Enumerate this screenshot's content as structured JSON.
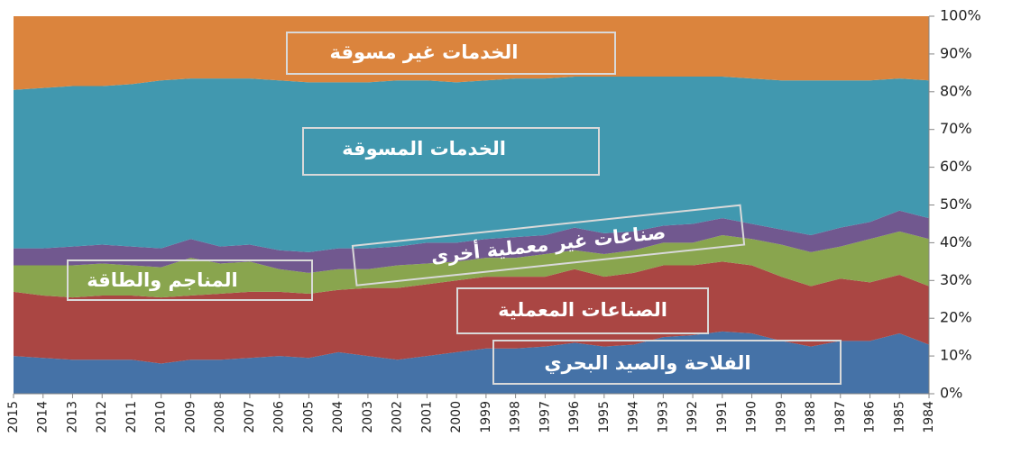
{
  "chart_data": {
    "type": "stacked_area",
    "categories": [
      "2015",
      "2014",
      "2013",
      "2012",
      "2011",
      "2010",
      "2009",
      "2008",
      "2007",
      "2006",
      "2005",
      "2004",
      "2003",
      "2002",
      "2001",
      "2000",
      "1999",
      "1998",
      "1997",
      "1996",
      "1995",
      "1994",
      "1993",
      "1992",
      "1991",
      "1990",
      "1989",
      "1988",
      "1987",
      "1986",
      "1985",
      "1984"
    ],
    "series": [
      {
        "name": "الفلاحة والصيد البحري",
        "color": "#4572a7",
        "values": [
          10,
          9.5,
          9,
          9,
          9,
          8,
          9,
          9,
          9.5,
          10,
          9.5,
          11,
          10,
          9,
          10,
          11,
          12,
          12,
          12.5,
          13.5,
          12.5,
          13,
          15,
          15.5,
          16.5,
          16,
          14,
          12.5,
          14,
          14,
          16,
          13
        ]
      },
      {
        "name": "الصناعات المعملية",
        "color": "#aa4643",
        "values": [
          17,
          16.5,
          16.5,
          17,
          17,
          17.5,
          17,
          17.5,
          17.5,
          17,
          17,
          16.5,
          18,
          19,
          19,
          19,
          19,
          19,
          18.5,
          19.5,
          18.5,
          19,
          19,
          18.5,
          18.5,
          18,
          17,
          16,
          16.5,
          15.5,
          15.5,
          15.5
        ]
      },
      {
        "name": "المناجم والطاقة",
        "color": "#89a54e",
        "values": [
          7,
          8,
          8.5,
          8.5,
          8,
          8,
          10,
          8,
          8,
          6,
          5.5,
          5.5,
          5,
          6,
          5.5,
          5,
          5,
          5,
          6,
          5,
          6,
          6,
          6,
          6,
          7,
          7,
          8.5,
          9,
          8.5,
          11.5,
          11.5,
          12.5
        ]
      },
      {
        "name": "صناعات غير معملية أخرى",
        "color": "#71588f",
        "values": [
          4.5,
          4.5,
          5,
          5,
          5,
          5,
          5,
          4.5,
          4.5,
          5,
          5.5,
          5.5,
          5.5,
          5,
          5.5,
          5,
          5,
          5.5,
          5,
          6,
          5.5,
          5,
          4.5,
          5,
          4.5,
          4,
          4,
          4.5,
          5,
          4.5,
          5.5,
          5.5
        ]
      },
      {
        "name": "الخدمات المسوقة",
        "color": "#4198af",
        "values": [
          42,
          42.5,
          42.5,
          42,
          43,
          44.5,
          42.5,
          44.5,
          44,
          45,
          45,
          44,
          44,
          44,
          43,
          42.5,
          42,
          42,
          41.5,
          40,
          41.5,
          41,
          39.5,
          39,
          37.5,
          38.5,
          39.5,
          41,
          39,
          37.5,
          35,
          36.5
        ]
      },
      {
        "name": "الخدمات غير مسوقة",
        "color": "#db843d",
        "values": [
          19.5,
          19,
          18.5,
          18.5,
          18,
          17,
          16.5,
          16.5,
          16.5,
          17,
          17.5,
          17.5,
          17.5,
          17,
          17,
          17.5,
          17,
          16.5,
          16.5,
          16,
          16,
          16,
          16,
          16,
          16,
          16.5,
          17,
          17,
          17,
          17,
          16.5,
          17
        ]
      }
    ],
    "ylim": [
      0,
      100
    ],
    "yticks": [
      {
        "value": 0,
        "label": "0%"
      },
      {
        "value": 10,
        "label": "10%"
      },
      {
        "value": 20,
        "label": "20%"
      },
      {
        "value": 30,
        "label": "30%"
      },
      {
        "value": 40,
        "label": "40%"
      },
      {
        "value": 50,
        "label": "50%"
      },
      {
        "value": 60,
        "label": "60%"
      },
      {
        "value": 70,
        "label": "70%"
      },
      {
        "value": 80,
        "label": "80%"
      },
      {
        "value": 90,
        "label": "90%"
      },
      {
        "value": 100,
        "label": "100%"
      }
    ],
    "y_axis_side": "right"
  }
}
